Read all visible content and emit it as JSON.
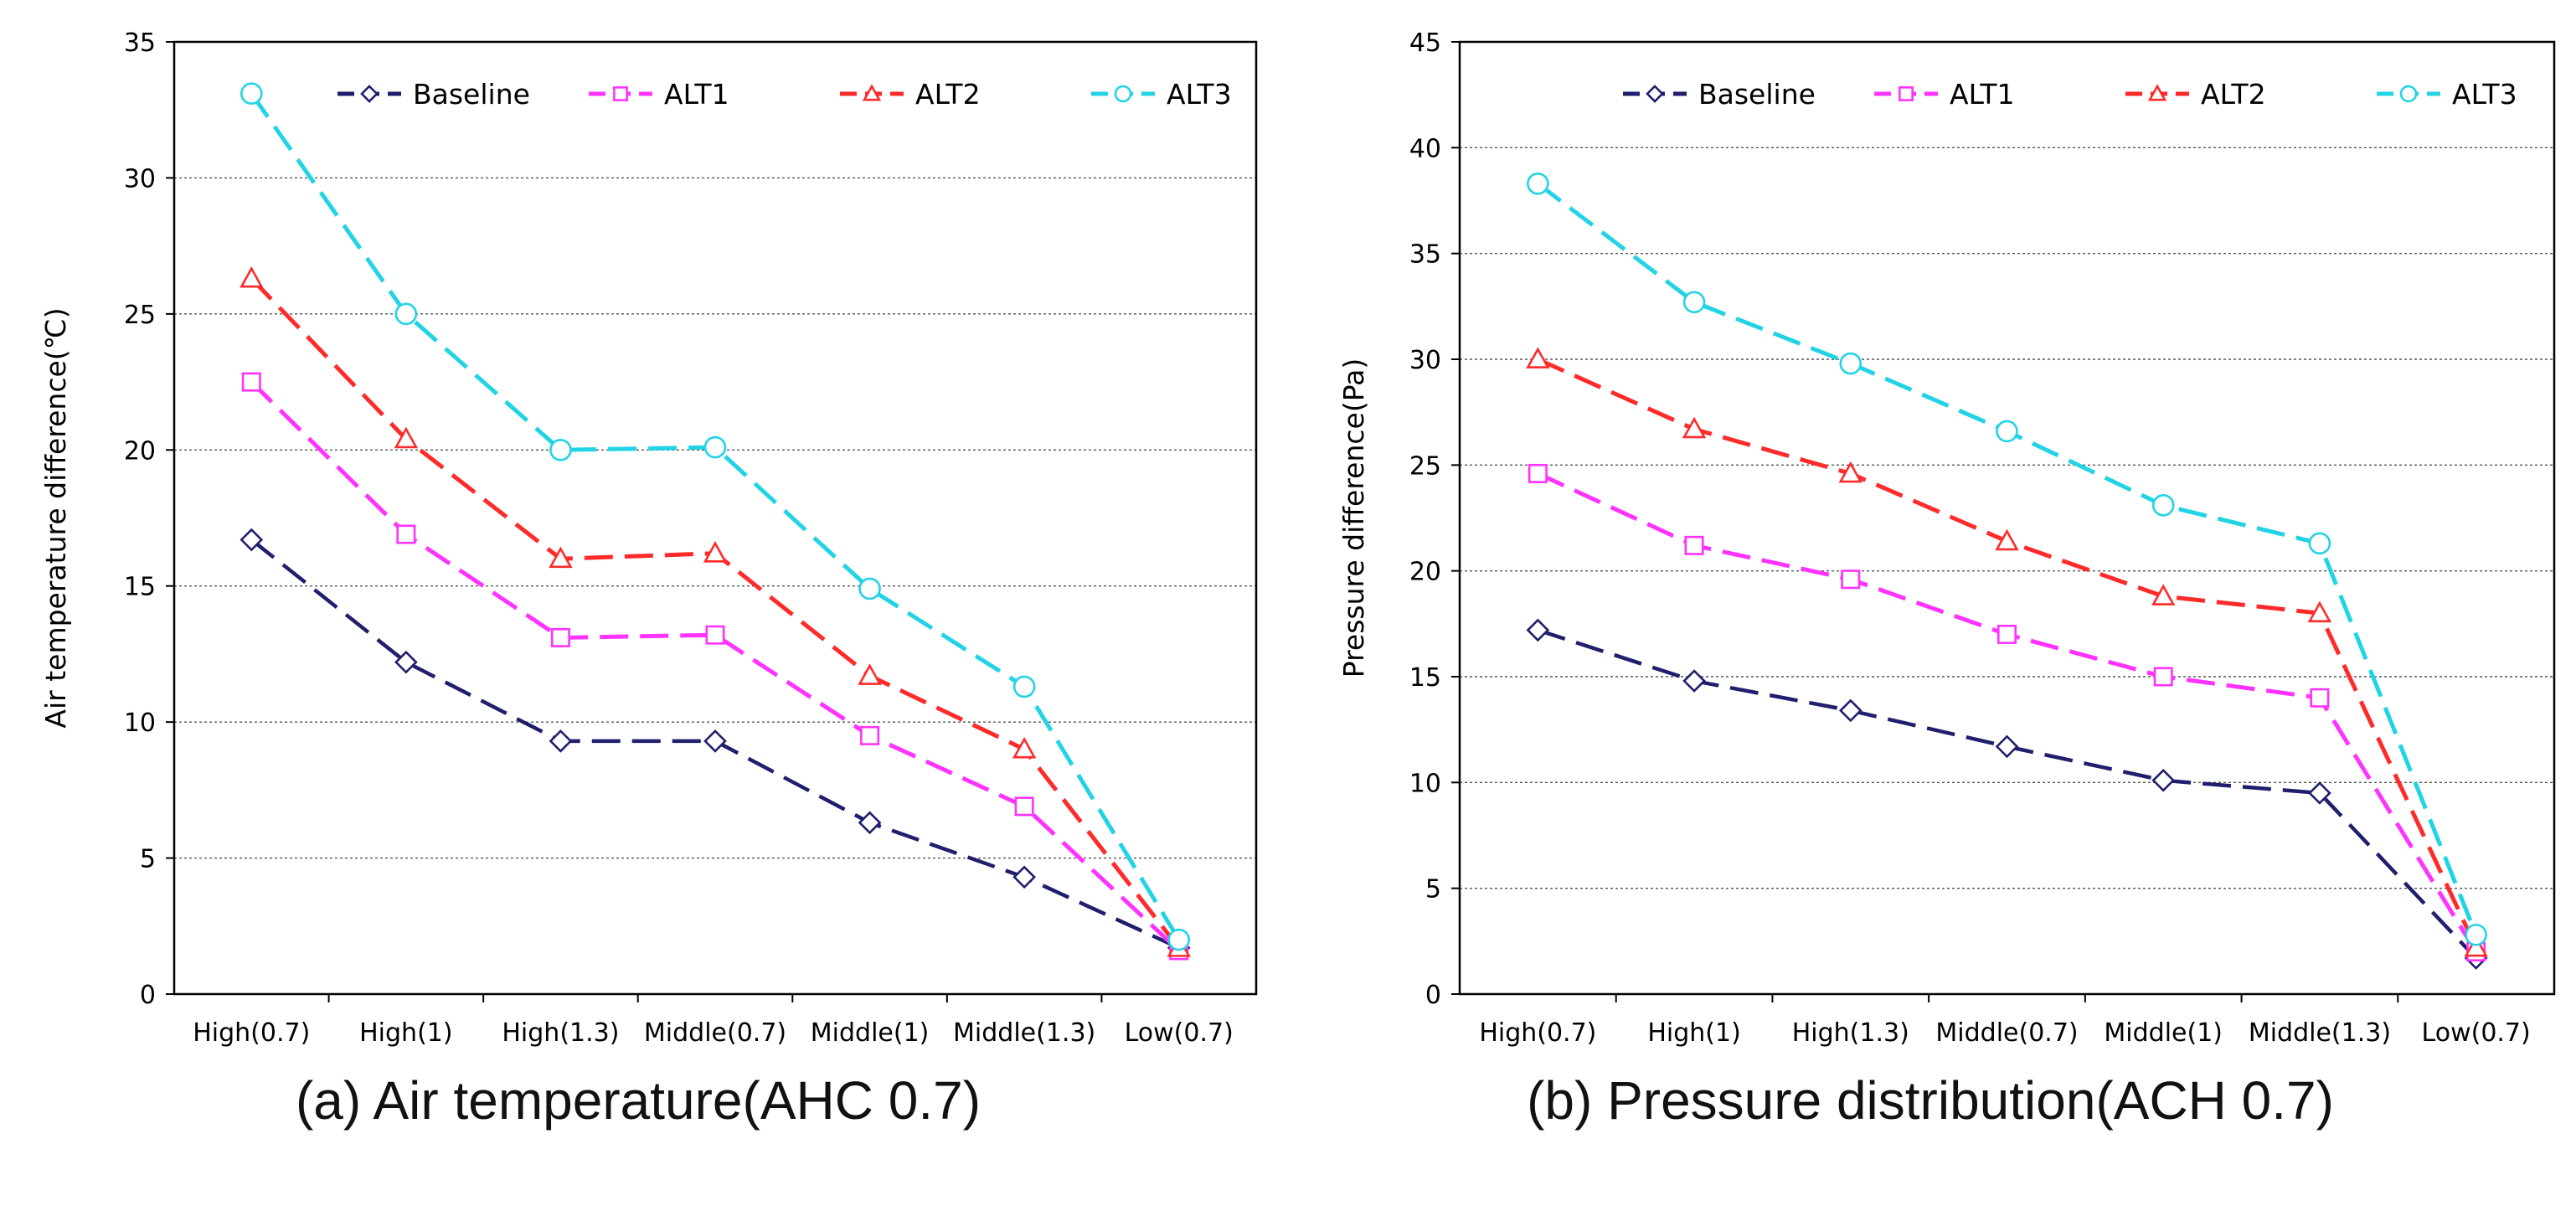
{
  "chart_data": [
    {
      "type": "line",
      "caption": "(a) Air temperature(AHC 0.7)",
      "title": "",
      "xlabel": "",
      "ylabel": "Air temperature difference(℃)",
      "ylim": [
        0,
        35
      ],
      "yticks": [
        0,
        5,
        10,
        15,
        20,
        25,
        30,
        35
      ],
      "ytick_labels": [
        "0",
        "5",
        "10",
        "15",
        "20",
        "25",
        "30",
        "35"
      ],
      "categories": [
        "High(0.7)",
        "High(1)",
        "High(1.3)",
        "Middle(0.7)",
        "Middle(1)",
        "Middle(1.3)",
        "Low(0.7)"
      ],
      "grid": "horizontal-dotted",
      "legend_position": "top",
      "series": [
        {
          "name": "Baseline",
          "color": "#1f1f6e",
          "marker": "diamond",
          "values": [
            16.7,
            12.2,
            9.3,
            9.3,
            6.3,
            4.3,
            1.7
          ]
        },
        {
          "name": "ALT1",
          "color": "#ff33ff",
          "marker": "square",
          "values": [
            22.5,
            16.9,
            13.1,
            13.2,
            9.5,
            6.9,
            1.6
          ]
        },
        {
          "name": "ALT2",
          "color": "#ff2a2a",
          "marker": "triangle",
          "values": [
            26.3,
            20.4,
            16.0,
            16.2,
            11.7,
            9.0,
            1.7
          ]
        },
        {
          "name": "ALT3",
          "color": "#22d3e6",
          "marker": "circle",
          "values": [
            33.1,
            25.0,
            20.0,
            20.1,
            14.9,
            11.3,
            2.0
          ]
        }
      ]
    },
    {
      "type": "line",
      "caption": "(b) Pressure distribution(ACH 0.7)",
      "title": "",
      "xlabel": "",
      "ylabel": "Pressure difference(Pa)",
      "ylim": [
        0,
        45
      ],
      "yticks": [
        0,
        5,
        10,
        15,
        20,
        25,
        30,
        35,
        40,
        45
      ],
      "ytick_labels": [
        "0",
        "5",
        "10",
        "15",
        "20",
        "25",
        "30",
        "35",
        "40",
        "45"
      ],
      "categories": [
        "High(0.7)",
        "High(1)",
        "High(1.3)",
        "Middle(0.7)",
        "Middle(1)",
        "Middle(1.3)",
        "Low(0.7)"
      ],
      "grid": "horizontal-dotted",
      "legend_position": "top",
      "series": [
        {
          "name": "Baseline",
          "color": "#1f1f6e",
          "marker": "diamond",
          "values": [
            17.2,
            14.8,
            13.4,
            11.7,
            10.1,
            9.5,
            1.7
          ]
        },
        {
          "name": "ALT1",
          "color": "#ff33ff",
          "marker": "square",
          "values": [
            24.6,
            21.2,
            19.6,
            17.0,
            15.0,
            14.0,
            2.0
          ]
        },
        {
          "name": "ALT2",
          "color": "#ff2a2a",
          "marker": "triangle",
          "values": [
            30.0,
            26.7,
            24.6,
            21.4,
            18.8,
            18.0,
            2.2
          ]
        },
        {
          "name": "ALT3",
          "color": "#22d3e6",
          "marker": "circle",
          "values": [
            38.3,
            32.7,
            29.8,
            26.6,
            23.1,
            21.3,
            2.8
          ]
        }
      ]
    }
  ]
}
